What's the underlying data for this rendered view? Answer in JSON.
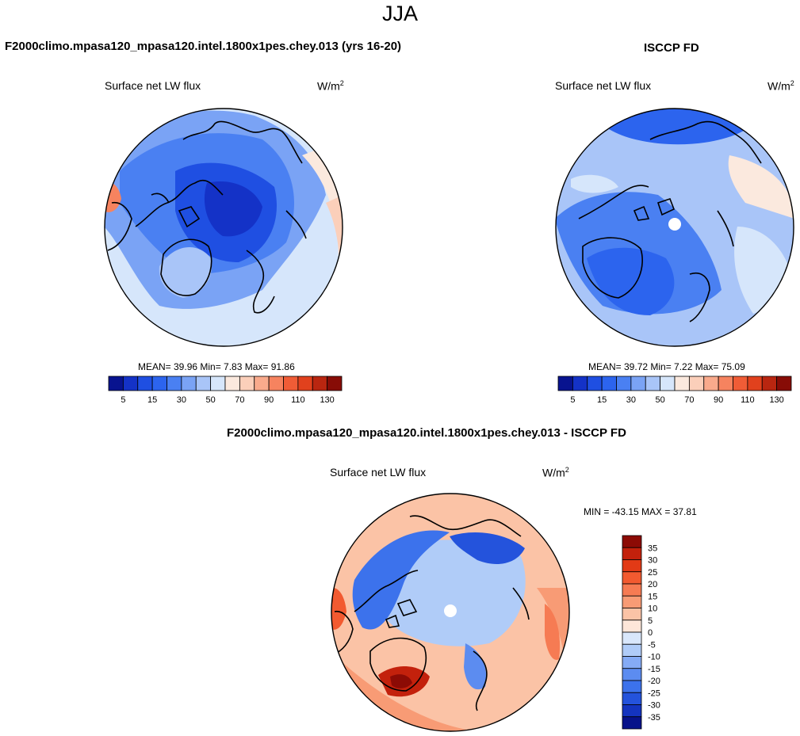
{
  "figure": {
    "title": "JJA"
  },
  "panels": [
    {
      "case_title": "F2000climo.mpasa120_mpasa120.intel.1800x1pes.chey.013 (yrs 16-20)",
      "variable": "Surface net LW flux",
      "units_base": "W/m",
      "units_exp": "2",
      "stats": "MEAN=  39.96  Min=   7.83  Max=  91.86"
    },
    {
      "case_title": "ISCCP FD",
      "variable": "Surface net LW flux",
      "units_base": "W/m",
      "units_exp": "2",
      "stats": "MEAN=  39.72  Min=   7.22  Max=  75.09"
    },
    {
      "case_title": "F2000climo.mpasa120_mpasa120.intel.1800x1pes.chey.013 - ISCCP FD",
      "variable": "Surface net LW flux",
      "units_base": "W/m",
      "units_exp": "2",
      "stats": "MIN = -43.15 MAX =  37.81"
    }
  ],
  "colorbar_abs": {
    "labels": [
      "5",
      "15",
      "30",
      "50",
      "70",
      "90",
      "110",
      "130"
    ],
    "colors": [
      "#08138f",
      "#1432c7",
      "#1f4fe2",
      "#2c64ee",
      "#4a80f2",
      "#7aa3f5",
      "#a9c5f8",
      "#d6e6fb",
      "#fbe9de",
      "#fbcfba",
      "#f9aa8c",
      "#f6835f",
      "#f05c36",
      "#e1411d",
      "#b92610",
      "#870c06"
    ]
  },
  "colorbar_diff": {
    "labels": [
      "35",
      "30",
      "25",
      "20",
      "15",
      "10",
      "5",
      "0",
      "-5",
      "-10",
      "-15",
      "-20",
      "-25",
      "-30",
      "-35"
    ],
    "colors": [
      "#8c0b05",
      "#c3210c",
      "#e23a16",
      "#f25a30",
      "#f67b53",
      "#f89b75",
      "#fbc3a6",
      "#fde6d9",
      "#d9e7fb",
      "#b0ccf8",
      "#85abf5",
      "#5c8cf0",
      "#3c72ec",
      "#2453dc",
      "#1434bf",
      "#07128a"
    ]
  },
  "map_colors": {
    "ocean_light": "#d6e6fb",
    "blue_mid": "#7aa3f5",
    "blue_strong": "#2c64ee",
    "blue_deep": "#1432c7",
    "warm_light": "#fbcfba",
    "warm_mid": "#f6835f",
    "warm_deep": "#c3210c",
    "coast": "#000000"
  }
}
